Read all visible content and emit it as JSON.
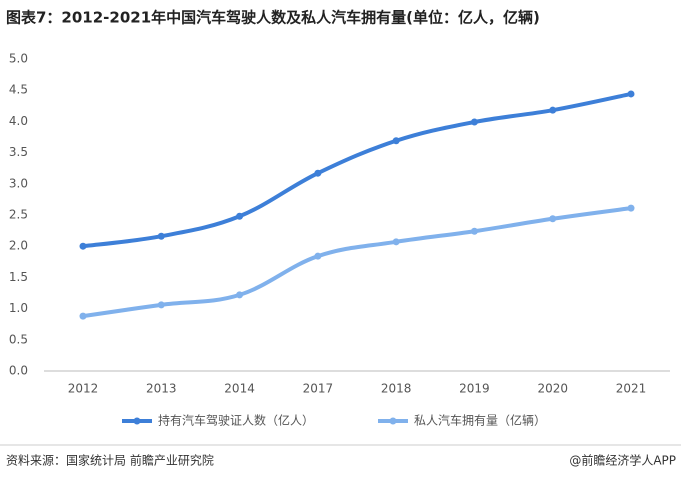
{
  "chart_data": {
    "type": "line",
    "title": "图表7：2012-2021年中国汽车驾驶人数及私人汽车拥有量(单位：亿人，亿辆)",
    "categories": [
      "2012",
      "2013",
      "2014",
      "2017",
      "2018",
      "2019",
      "2020",
      "2021"
    ],
    "series": [
      {
        "name": "持有汽车驾驶证人数（亿人）",
        "color": "#3d7fd8",
        "values": [
          2.0,
          2.16,
          2.48,
          3.17,
          3.69,
          3.99,
          4.18,
          4.44
        ]
      },
      {
        "name": "私人汽车拥有量（亿辆）",
        "color": "#80b1ec",
        "values": [
          0.88,
          1.06,
          1.22,
          1.84,
          2.07,
          2.24,
          2.44,
          2.61
        ]
      }
    ],
    "ylim": [
      0,
      5
    ],
    "yticks": [
      {
        "value": 0,
        "label": "0.0"
      },
      {
        "value": 0.5,
        "label": "0.5"
      },
      {
        "value": 1,
        "label": "1.0"
      },
      {
        "value": 1.5,
        "label": "1.5"
      },
      {
        "value": 2,
        "label": "2.0"
      },
      {
        "value": 2.5,
        "label": "2.5"
      },
      {
        "value": 3,
        "label": "3.0"
      },
      {
        "value": 3.5,
        "label": "3.5"
      },
      {
        "value": 4,
        "label": "4.0"
      },
      {
        "value": 4.5,
        "label": "4.5"
      },
      {
        "value": 5,
        "label": "5.0"
      }
    ],
    "grid": false,
    "source": "资料来源：国家统计局 前瞻产业研究院",
    "brand": "@前瞻经济学人APP"
  }
}
